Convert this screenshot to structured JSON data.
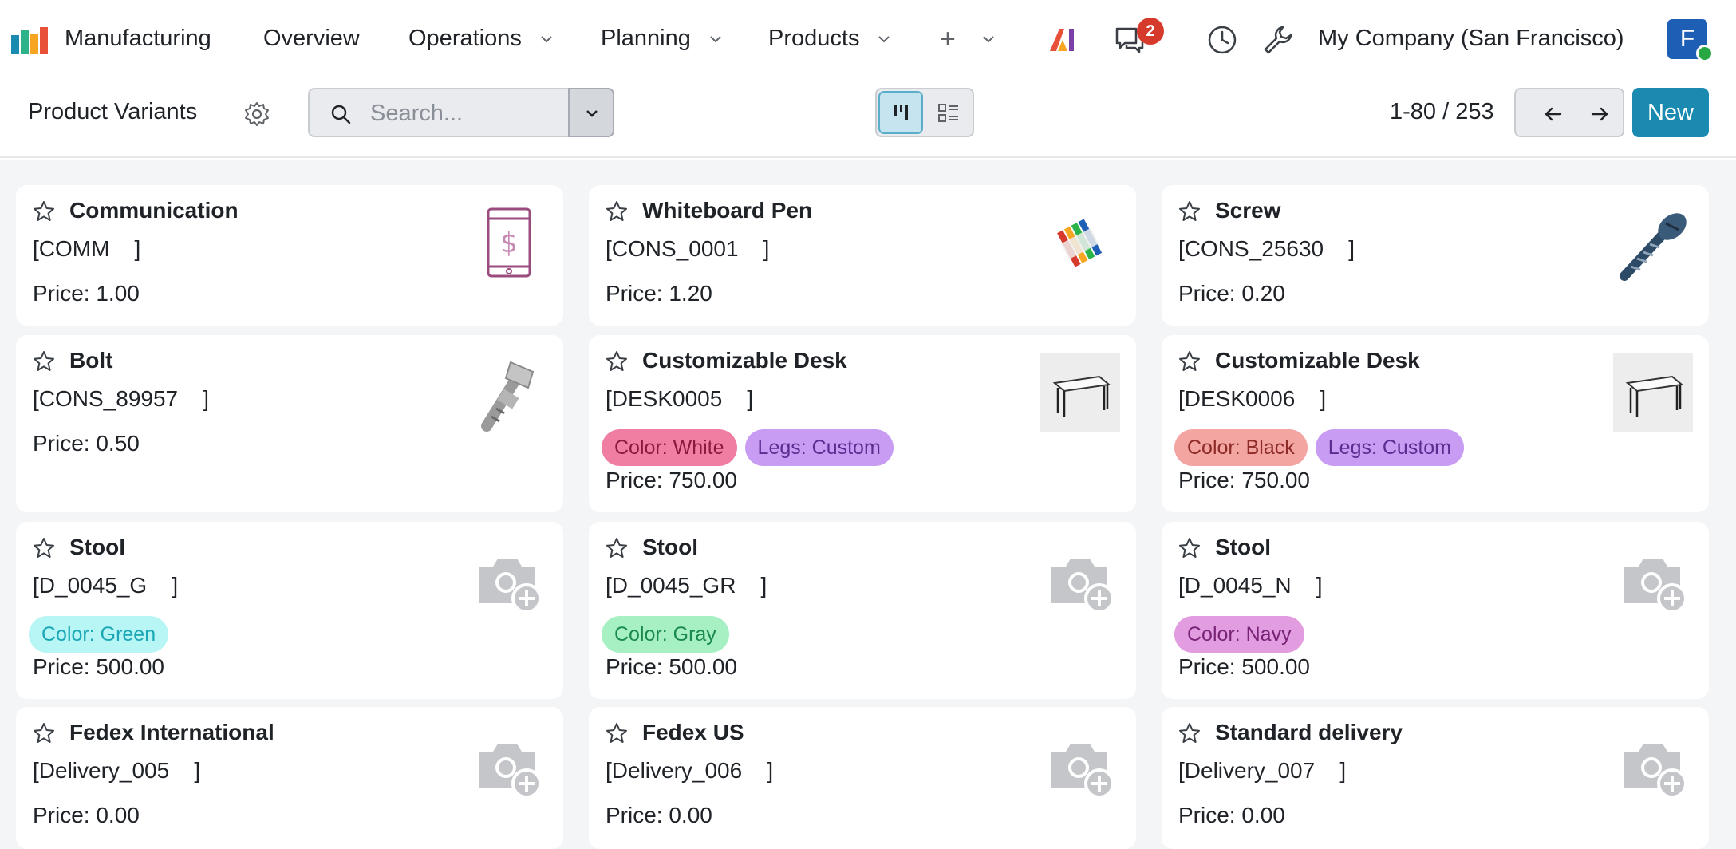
{
  "navbar": {
    "app_name": "Manufacturing",
    "menus": [
      "Overview",
      "Operations",
      "Planning",
      "Products"
    ],
    "plus_label": "+",
    "chat_badge": "2",
    "company": "My Company (San Francisco)",
    "avatar_initial": "F"
  },
  "control": {
    "title": "Product Variants",
    "search_placeholder": "Search...",
    "pager": "1-80 / 253",
    "new_label": "New"
  },
  "colors": {
    "accent": "#1a8ab0",
    "badge": "#d63a2c",
    "avatar": "#1e5fb5"
  },
  "cards": [
    {
      "name": "Communication",
      "ref": "[COMM    ]",
      "price": "Price: 1.00",
      "image": "phone-dollar-icon",
      "tags": []
    },
    {
      "name": "Whiteboard Pen",
      "ref": "[CONS_0001    ]",
      "price": "Price: 1.20",
      "image": "markers-image",
      "tags": []
    },
    {
      "name": "Screw",
      "ref": "[CONS_25630    ]",
      "price": "Price: 0.20",
      "image": "screw-image",
      "tags": []
    },
    {
      "name": "Bolt",
      "ref": "[CONS_89957    ]",
      "price": "Price: 0.50",
      "image": "bolt-image",
      "tags": []
    },
    {
      "name": "Customizable Desk",
      "ref": "[DESK0005    ]",
      "price": "Price: 750.00",
      "image": "desk-image",
      "tags": [
        {
          "label": "Color: White",
          "bg": "#f07ea3",
          "fg": "#8a1a3e"
        },
        {
          "label": "Legs: Custom",
          "bg": "#c79cf2",
          "fg": "#5a2d91"
        }
      ]
    },
    {
      "name": "Customizable Desk",
      "ref": "[DESK0006    ]",
      "price": "Price: 750.00",
      "image": "desk-image",
      "tags": [
        {
          "label": "Color: Black",
          "bg": "#f3a5a2",
          "fg": "#8e2b27"
        },
        {
          "label": "Legs: Custom",
          "bg": "#c79cf2",
          "fg": "#5a2d91"
        }
      ]
    },
    {
      "name": "Stool",
      "ref": "[D_0045_G    ]",
      "price": "Price: 500.00",
      "image": "camera-placeholder-icon",
      "tags": [
        {
          "label": "Color: Green",
          "bg": "#b8f5f5",
          "fg": "#1aa7b5"
        }
      ]
    },
    {
      "name": "Stool",
      "ref": "[D_0045_GR    ]",
      "price": "Price: 500.00",
      "image": "camera-placeholder-icon",
      "tags": [
        {
          "label": "Color: Gray",
          "bg": "#a7f0c4",
          "fg": "#1a8a4c"
        }
      ]
    },
    {
      "name": "Stool",
      "ref": "[D_0045_N    ]",
      "price": "Price: 500.00",
      "image": "camera-placeholder-icon",
      "tags": [
        {
          "label": "Color: Navy",
          "bg": "#e29ce0",
          "fg": "#7a2478"
        }
      ]
    },
    {
      "name": "Fedex International",
      "ref": "[Delivery_005    ]",
      "price": "Price: 0.00",
      "image": "camera-placeholder-icon",
      "tags": []
    },
    {
      "name": "Fedex US",
      "ref": "[Delivery_006    ]",
      "price": "Price: 0.00",
      "image": "camera-placeholder-icon",
      "tags": []
    },
    {
      "name": "Standard delivery",
      "ref": "[Delivery_007    ]",
      "price": "Price: 0.00",
      "image": "camera-placeholder-icon",
      "tags": []
    }
  ]
}
